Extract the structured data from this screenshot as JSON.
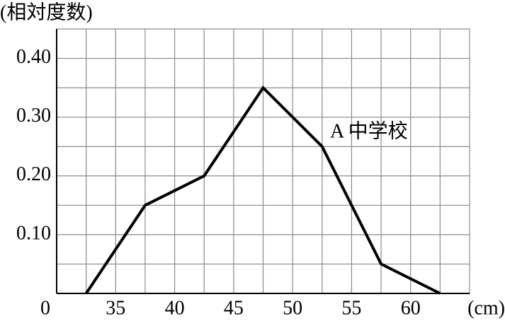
{
  "chart_data": {
    "type": "line",
    "x_label": "(cm)",
    "y_label": "(相対度数)",
    "origin_label": "0",
    "annotation": "A 中学校",
    "x": [
      32.5,
      37.5,
      42.5,
      47.5,
      52.5,
      57.5,
      62.5
    ],
    "series": [
      {
        "name": "A 中学校",
        "color": "#000000",
        "values": [
          0,
          0.15,
          0.2,
          0.35,
          0.25,
          0.05,
          0
        ]
      }
    ],
    "xlim": [
      30,
      65
    ],
    "xticks": [
      35,
      40,
      45,
      50,
      55,
      60
    ],
    "x_minor_ticks": [
      32.5,
      37.5,
      42.5,
      47.5,
      52.5,
      57.5,
      62.5
    ],
    "ylim": [
      0,
      0.45
    ],
    "yticks": [
      {
        "value": 0.1,
        "label": "0.10"
      },
      {
        "value": 0.2,
        "label": "0.20"
      },
      {
        "value": 0.3,
        "label": "0.30"
      },
      {
        "value": 0.4,
        "label": "0.40"
      }
    ],
    "y_minor_ticks": [
      0.05,
      0.15,
      0.25,
      0.35
    ],
    "grid": true
  }
}
